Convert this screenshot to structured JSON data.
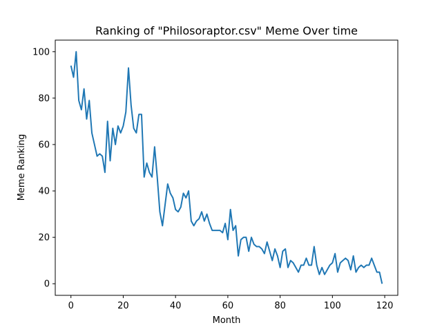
{
  "chart_data": {
    "type": "line",
    "title": "Ranking of \"Philosoraptor.csv\" Meme Over time",
    "xlabel": "Month",
    "ylabel": "Meme Ranking",
    "xlim": [
      -6,
      125
    ],
    "ylim": [
      -5,
      105
    ],
    "xticks": [
      0,
      20,
      40,
      60,
      80,
      100,
      120
    ],
    "yticks": [
      0,
      20,
      40,
      60,
      80,
      100
    ],
    "grid": false,
    "line_color": "#1f77b4",
    "series": [
      {
        "x": [
          0,
          1,
          2,
          3,
          4,
          5,
          6,
          7,
          8,
          9,
          10,
          11,
          12,
          13,
          14,
          15,
          16,
          17,
          18,
          19,
          20,
          21,
          22,
          23,
          24,
          25,
          26,
          27,
          28,
          29,
          30,
          31,
          32,
          33,
          34,
          35,
          36,
          37,
          38,
          39,
          40,
          41,
          42,
          43,
          44,
          45,
          46,
          47,
          48,
          49,
          50,
          51,
          52,
          53,
          54,
          55,
          56,
          57,
          58,
          59,
          60,
          61,
          62,
          63,
          64,
          65,
          66,
          67,
          68,
          69,
          70,
          71,
          72,
          73,
          74,
          75,
          76,
          77,
          78,
          79,
          80,
          81,
          82,
          83,
          84,
          85,
          86,
          87,
          88,
          89,
          90,
          91,
          92,
          93,
          94,
          95,
          96,
          97,
          98,
          99,
          100,
          101,
          102,
          103,
          104,
          105,
          106,
          107,
          108,
          109,
          110,
          111,
          112,
          113,
          114,
          115,
          116,
          117,
          118,
          119
        ],
        "values": [
          94,
          89,
          100,
          79,
          75,
          84,
          71,
          79,
          65,
          60,
          55,
          56,
          55,
          48,
          70,
          53,
          67,
          60,
          68,
          65,
          68,
          74,
          93,
          77,
          67,
          65,
          73,
          73,
          46,
          52,
          48,
          46,
          59,
          46,
          31,
          25,
          34,
          43,
          39,
          37,
          32,
          31,
          33,
          39,
          37,
          40,
          27,
          25,
          27,
          28,
          31,
          27,
          30,
          26,
          23,
          23,
          23,
          23,
          22,
          26,
          19,
          32,
          23,
          25,
          12,
          19,
          20,
          20,
          14,
          20,
          17,
          16,
          16,
          15,
          13,
          18,
          14,
          10,
          15,
          12,
          7,
          14,
          15,
          7,
          10,
          9,
          7,
          5,
          8,
          8,
          11,
          8,
          8,
          16,
          8,
          4,
          7,
          4,
          6,
          8,
          9,
          13,
          5,
          9,
          10,
          11,
          10,
          6,
          12,
          5,
          7,
          8,
          7,
          8,
          8,
          11,
          8,
          5,
          5,
          0
        ]
      }
    ]
  }
}
